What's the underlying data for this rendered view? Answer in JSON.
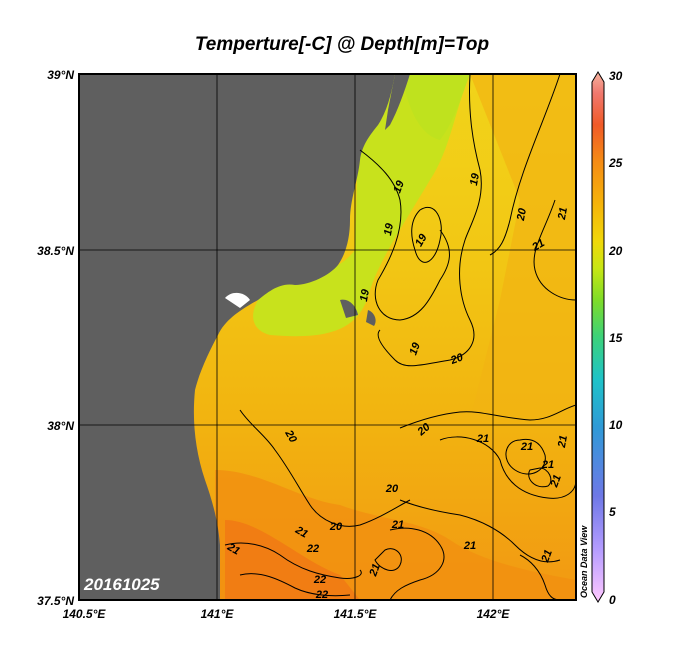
{
  "title": "Temperture[-C] @ Depth[m]=Top",
  "date_stamp": "20161025",
  "watermark": "Ocean Data View",
  "map": {
    "lat_ticks": [
      "39°N",
      "38.5°N",
      "38°N",
      "37.5°N"
    ],
    "lon_ticks": [
      "140.5°E",
      "141°E",
      "141.5°E",
      "142°E"
    ],
    "lat_range": [
      37.5,
      39.0
    ],
    "lon_range": [
      140.5,
      142.3
    ],
    "land_color": "#5f5f5f",
    "colorscale": [
      "#ffc8ff",
      "#b49cff",
      "#6e78e6",
      "#2f9ad7",
      "#1fc3c8",
      "#3cd27a",
      "#7fdc28",
      "#c8e614",
      "#f0d80a",
      "#f5b40a",
      "#f58c14",
      "#f05a28",
      "#f0786e",
      "#f5b4a0"
    ]
  },
  "contour_labels": [
    {
      "text": "19"
    },
    {
      "text": "19"
    },
    {
      "text": "19"
    },
    {
      "text": "19"
    },
    {
      "text": "19"
    },
    {
      "text": "19"
    },
    {
      "text": "20"
    },
    {
      "text": "21"
    },
    {
      "text": "21"
    },
    {
      "text": "20"
    },
    {
      "text": "20"
    },
    {
      "text": "20"
    },
    {
      "text": "21"
    },
    {
      "text": "21"
    },
    {
      "text": "21"
    },
    {
      "text": "21"
    },
    {
      "text": "20"
    },
    {
      "text": "20"
    },
    {
      "text": "21"
    },
    {
      "text": "21"
    },
    {
      "text": "21"
    },
    {
      "text": "22"
    },
    {
      "text": "21"
    },
    {
      "text": "22"
    },
    {
      "text": "21"
    },
    {
      "text": "21"
    },
    {
      "text": "22"
    },
    {
      "text": "21"
    }
  ],
  "colorbar": {
    "ticks": [
      "30",
      "25",
      "20",
      "15",
      "10",
      "5",
      "0"
    ],
    "range": [
      0,
      30
    ]
  }
}
